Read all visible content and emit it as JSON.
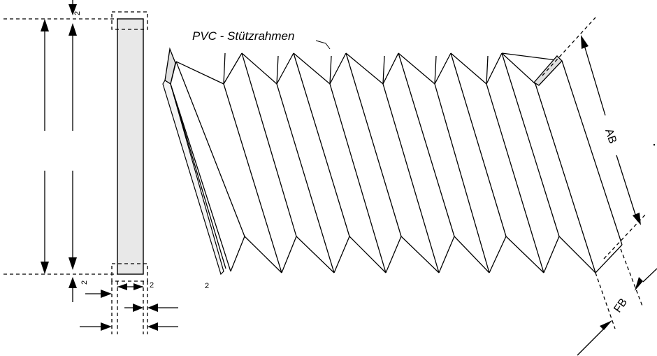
{
  "labels": {
    "frame": "PVC - Stützrahmen",
    "ab": "AB",
    "fb": "FB",
    "dim_top": "2",
    "dim_bottom": "2",
    "dim_side": "2",
    "dim_extra": "2"
  },
  "colors": {
    "frame_fill": "#e8e8e8",
    "line": "#000000"
  }
}
